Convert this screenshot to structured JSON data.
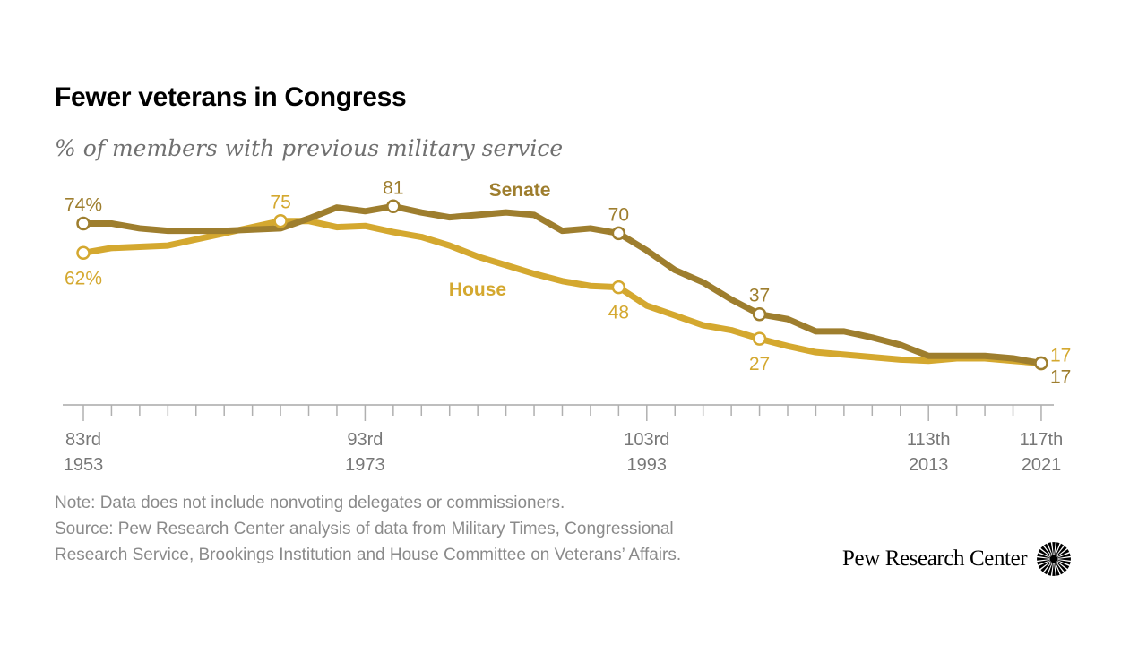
{
  "header": {
    "title": "Fewer veterans in Congress",
    "subtitle": "% of members with previous military service"
  },
  "chart_data": {
    "type": "line",
    "title": "Fewer veterans in Congress",
    "subtitle": "% of members with previous military service",
    "xlabel": "",
    "ylabel": "",
    "ylim": [
      0,
      85
    ],
    "grid": false,
    "x_first_congress": 83,
    "x_last_congress": 117,
    "x_tick_labels": [
      {
        "congress": 83,
        "label": "83rd",
        "year": "1953"
      },
      {
        "congress": 93,
        "label": "93rd",
        "year": "1973"
      },
      {
        "congress": 103,
        "label": "103rd",
        "year": "1993"
      },
      {
        "congress": 113,
        "label": "113th",
        "year": "2013"
      },
      {
        "congress": 117,
        "label": "117th",
        "year": "2021"
      }
    ],
    "series": [
      {
        "name": "Senate",
        "color": "#9E7E2E",
        "values": [
          74,
          74,
          72,
          71,
          71,
          71,
          71.5,
          72,
          76,
          80.5,
          79,
          81,
          78.5,
          76.5,
          77.5,
          78.5,
          77.5,
          71,
          72,
          70,
          63,
          55,
          50,
          43,
          37,
          35,
          30,
          30,
          27.5,
          24.5,
          20,
          20,
          20,
          19,
          17
        ]
      },
      {
        "name": "House",
        "color": "#D4A82F",
        "values": [
          62,
          64,
          64.5,
          65,
          67.5,
          70,
          72.5,
          75,
          75,
          72.5,
          73,
          70.5,
          68.5,
          65,
          60.5,
          57,
          53.5,
          50.5,
          48.5,
          48,
          40.5,
          36.5,
          32.5,
          30.5,
          27,
          24,
          21.5,
          20.5,
          19.5,
          18.5,
          18,
          19,
          19,
          18,
          17
        ]
      }
    ],
    "annotations": [
      {
        "series": "Senate",
        "congress": 83,
        "text": "74%",
        "position": "above"
      },
      {
        "series": "House",
        "congress": 83,
        "text": "62%",
        "position": "below"
      },
      {
        "series": "House",
        "congress": 90,
        "text": "75",
        "position": "above"
      },
      {
        "series": "Senate",
        "congress": 94,
        "text": "81",
        "position": "above"
      },
      {
        "series": "Senate",
        "congress": 102,
        "text": "70",
        "position": "above"
      },
      {
        "series": "House",
        "congress": 102,
        "text": "48",
        "position": "below"
      },
      {
        "series": "Senate",
        "congress": 107,
        "text": "37",
        "position": "above"
      },
      {
        "series": "House",
        "congress": 107,
        "text": "27",
        "position": "below"
      },
      {
        "series": "House",
        "congress": 117,
        "text": "17",
        "position": "right-above"
      },
      {
        "series": "Senate",
        "congress": 117,
        "text": "17",
        "position": "right-below"
      }
    ],
    "series_labels": [
      {
        "series": "Senate",
        "text": "Senate"
      },
      {
        "series": "House",
        "text": "House"
      }
    ]
  },
  "footer": {
    "note": "Note: Data does not include nonvoting delegates or commissioners.",
    "source_line1": "Source: Pew Research Center analysis of data from Military Times, Congressional",
    "source_line2": "Research Service, Brookings Institution and House Committee on Veterans’ Affairs.",
    "logo_text": "Pew Research Center",
    "logo_icon": "sunburst-icon"
  }
}
